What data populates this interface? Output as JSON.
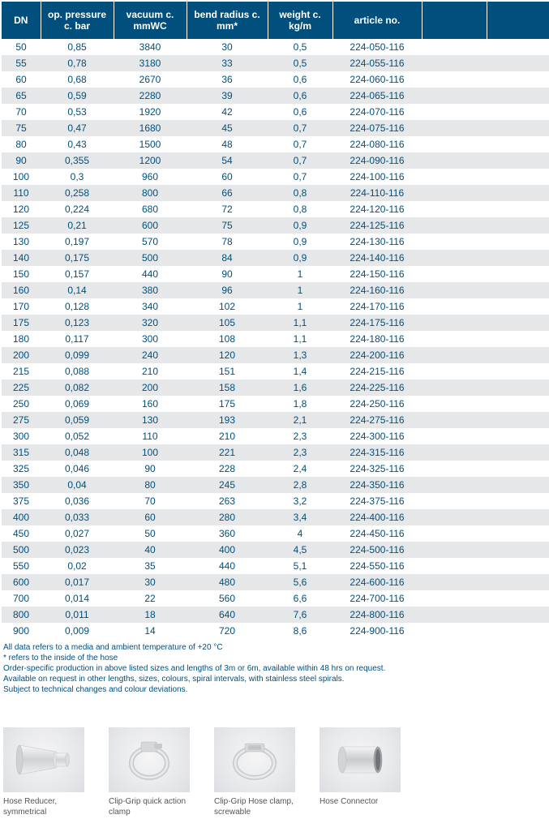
{
  "table": {
    "columns": [
      {
        "key": "dn",
        "label": "DN",
        "class": "col-dn"
      },
      {
        "key": "op",
        "label": "op. pressure\nc. bar",
        "class": "col-op"
      },
      {
        "key": "vac",
        "label": "vacuum c.\nmmWC",
        "class": "col-vac"
      },
      {
        "key": "bend",
        "label": "bend radius c.\nmm*",
        "class": "col-bend"
      },
      {
        "key": "wt",
        "label": "weight c.\nkg/m",
        "class": "col-wt"
      },
      {
        "key": "art",
        "label": "article no.",
        "class": "col-art"
      },
      {
        "key": "e1",
        "label": "",
        "class": "col-e1"
      },
      {
        "key": "e2",
        "label": "",
        "class": "col-e2"
      }
    ],
    "rows": [
      [
        "50",
        "0,85",
        "3840",
        "30",
        "0,5",
        "224-050-116",
        "",
        ""
      ],
      [
        "55",
        "0,78",
        "3180",
        "33",
        "0,5",
        "224-055-116",
        "",
        ""
      ],
      [
        "60",
        "0,68",
        "2670",
        "36",
        "0,6",
        "224-060-116",
        "",
        ""
      ],
      [
        "65",
        "0,59",
        "2280",
        "39",
        "0,6",
        "224-065-116",
        "",
        ""
      ],
      [
        "70",
        "0,53",
        "1920",
        "42",
        "0,6",
        "224-070-116",
        "",
        ""
      ],
      [
        "75",
        "0,47",
        "1680",
        "45",
        "0,7",
        "224-075-116",
        "",
        ""
      ],
      [
        "80",
        "0,43",
        "1500",
        "48",
        "0,7",
        "224-080-116",
        "",
        ""
      ],
      [
        "90",
        "0,355",
        "1200",
        "54",
        "0,7",
        "224-090-116",
        "",
        ""
      ],
      [
        "100",
        "0,3",
        "960",
        "60",
        "0,7",
        "224-100-116",
        "",
        ""
      ],
      [
        "110",
        "0,258",
        "800",
        "66",
        "0,8",
        "224-110-116",
        "",
        ""
      ],
      [
        "120",
        "0,224",
        "680",
        "72",
        "0,8",
        "224-120-116",
        "",
        ""
      ],
      [
        "125",
        "0,21",
        "600",
        "75",
        "0,9",
        "224-125-116",
        "",
        ""
      ],
      [
        "130",
        "0,197",
        "570",
        "78",
        "0,9",
        "224-130-116",
        "",
        ""
      ],
      [
        "140",
        "0,175",
        "500",
        "84",
        "0,9",
        "224-140-116",
        "",
        ""
      ],
      [
        "150",
        "0,157",
        "440",
        "90",
        "1",
        "224-150-116",
        "",
        ""
      ],
      [
        "160",
        "0,14",
        "380",
        "96",
        "1",
        "224-160-116",
        "",
        ""
      ],
      [
        "170",
        "0,128",
        "340",
        "102",
        "1",
        "224-170-116",
        "",
        ""
      ],
      [
        "175",
        "0,123",
        "320",
        "105",
        "1,1",
        "224-175-116",
        "",
        ""
      ],
      [
        "180",
        "0,117",
        "300",
        "108",
        "1,1",
        "224-180-116",
        "",
        ""
      ],
      [
        "200",
        "0,099",
        "240",
        "120",
        "1,3",
        "224-200-116",
        "",
        ""
      ],
      [
        "215",
        "0,088",
        "210",
        "151",
        "1,4",
        "224-215-116",
        "",
        ""
      ],
      [
        "225",
        "0,082",
        "200",
        "158",
        "1,6",
        "224-225-116",
        "",
        ""
      ],
      [
        "250",
        "0,069",
        "160",
        "175",
        "1,8",
        "224-250-116",
        "",
        ""
      ],
      [
        "275",
        "0,059",
        "130",
        "193",
        "2,1",
        "224-275-116",
        "",
        ""
      ],
      [
        "300",
        "0,052",
        "110",
        "210",
        "2,3",
        "224-300-116",
        "",
        ""
      ],
      [
        "315",
        "0,048",
        "100",
        "221",
        "2,3",
        "224-315-116",
        "",
        ""
      ],
      [
        "325",
        "0,046",
        "90",
        "228",
        "2,4",
        "224-325-116",
        "",
        ""
      ],
      [
        "350",
        "0,04",
        "80",
        "245",
        "2,8",
        "224-350-116",
        "",
        ""
      ],
      [
        "375",
        "0,036",
        "70",
        "263",
        "3,2",
        "224-375-116",
        "",
        ""
      ],
      [
        "400",
        "0,033",
        "60",
        "280",
        "3,4",
        "224-400-116",
        "",
        ""
      ],
      [
        "450",
        "0,027",
        "50",
        "360",
        "4",
        "224-450-116",
        "",
        ""
      ],
      [
        "500",
        "0,023",
        "40",
        "400",
        "4,5",
        "224-500-116",
        "",
        ""
      ],
      [
        "550",
        "0,02",
        "35",
        "440",
        "5,1",
        "224-550-116",
        "",
        ""
      ],
      [
        "600",
        "0,017",
        "30",
        "480",
        "5,6",
        "224-600-116",
        "",
        ""
      ],
      [
        "700",
        "0,014",
        "22",
        "560",
        "6,6",
        "224-700-116",
        "",
        ""
      ],
      [
        "800",
        "0,011",
        "18",
        "640",
        "7,6",
        "224-800-116",
        "",
        ""
      ],
      [
        "900",
        "0,009",
        "14",
        "720",
        "8,6",
        "224-900-116",
        "",
        ""
      ]
    ],
    "styling": {
      "header_bg": "#004f7c",
      "header_color": "#ffffff",
      "row_odd_bg": "#ffffff",
      "row_even_bg": "#e6e7e8",
      "text_color": "#004f7c",
      "font_size_header": 12,
      "font_size_body": 12
    }
  },
  "footnotes": [
    "All data refers to a media and ambient temperature of +20 °C",
    "* refers to the inside of the hose",
    "Order-specific production in above listed sizes and lengths of 3m or 6m, available within 48 hrs on request.",
    "Available on request in other lengths, sizes, colours, spiral intervals, with stainless steel spirals.",
    "Subject to technical changes and colour deviations."
  ],
  "products": [
    {
      "name": "hose-reducer",
      "caption": "Hose Reducer,\nsymmetrical"
    },
    {
      "name": "clip-grip-quick",
      "caption": "Clip-Grip quick action\nclamp"
    },
    {
      "name": "clip-grip-screwable",
      "caption": "Clip-Grip Hose clamp,\nscrewable"
    },
    {
      "name": "hose-connector",
      "caption": "Hose Connector"
    }
  ]
}
